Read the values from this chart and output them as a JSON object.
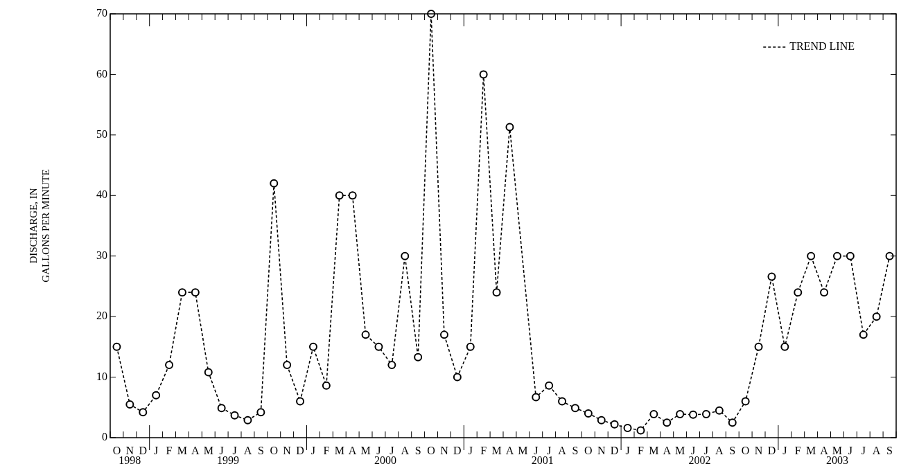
{
  "chart_data": {
    "type": "line",
    "ylabel": "DISCHARGE, IN GALLONS PER MINUTE",
    "legend": "top right",
    "grid": false,
    "marker": "circle",
    "line_style": "dashed",
    "ylim": [
      0,
      70
    ],
    "yticks": [
      0,
      10,
      20,
      30,
      40,
      50,
      60,
      70
    ],
    "categories": [
      "O",
      "N",
      "D",
      "J",
      "F",
      "M",
      "A",
      "M",
      "J",
      "J",
      "A",
      "S",
      "O",
      "N",
      "D",
      "J",
      "F",
      "M",
      "A",
      "M",
      "J",
      "J",
      "A",
      "S",
      "O",
      "N",
      "D",
      "J",
      "F",
      "M",
      "A",
      "M",
      "J",
      "J",
      "A",
      "S",
      "O",
      "N",
      "D",
      "J",
      "F",
      "M",
      "A",
      "M",
      "J",
      "J",
      "A",
      "S",
      "O",
      "N",
      "D",
      "J",
      "F",
      "M",
      "A",
      "M",
      "J",
      "J",
      "A",
      "S"
    ],
    "annotations": [
      "1998",
      "1999",
      "2000",
      "2001",
      "2002",
      "2003"
    ],
    "series": [
      {
        "name": "TREND LINE",
        "color": "#000000",
        "values": [
          15,
          5.5,
          4.2,
          7,
          12,
          24,
          24,
          10.8,
          4.9,
          3.7,
          2.9,
          4.2,
          42,
          12,
          6,
          15,
          8.6,
          40,
          40,
          17,
          15,
          12,
          30,
          13.3,
          70,
          17,
          10,
          15,
          60,
          24,
          51.3,
          null,
          6.7,
          8.6,
          6,
          4.9,
          4,
          2.9,
          2.2,
          1.6,
          1.2,
          3.9,
          2.5,
          3.9,
          3.8,
          3.9,
          4.5,
          2.5,
          6,
          15,
          26.6,
          15,
          24,
          30,
          24,
          30,
          30,
          17,
          20,
          30
        ]
      }
    ]
  }
}
